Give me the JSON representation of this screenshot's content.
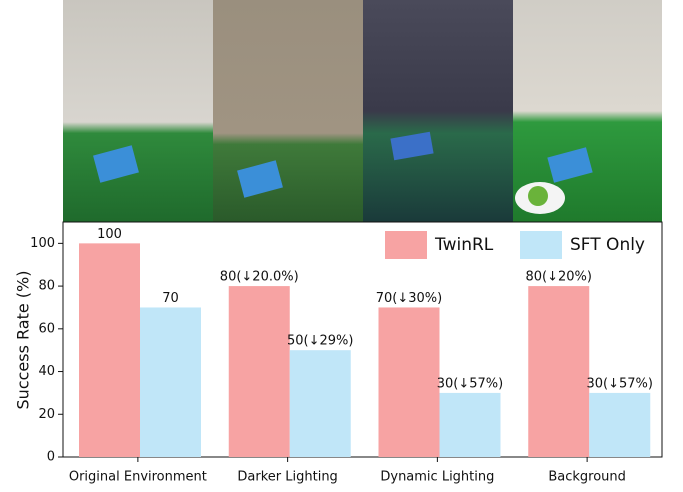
{
  "chart_data": {
    "type": "bar",
    "categories": [
      "Original Environment",
      "Darker Lighting",
      "Dynamic Lighting",
      "Background"
    ],
    "series": [
      {
        "name": "TwinRL",
        "color": "#f7a3a3",
        "values": [
          100,
          80,
          70,
          80
        ],
        "value_labels": [
          "100",
          "80(↓20.0%)",
          "70(↓30%)",
          "80(↓20%)"
        ]
      },
      {
        "name": "SFT Only",
        "color": "#c0e6f8",
        "values": [
          70,
          50,
          30,
          30
        ],
        "value_labels": [
          "70",
          "50(↓29%)",
          "30(↓57%)",
          "30(↓57%)"
        ]
      }
    ],
    "y_label": "Success Rate (%)",
    "ylim": [
      0,
      110
    ],
    "yticks": [
      0,
      20,
      40,
      60,
      80,
      100
    ],
    "legend": "top-right"
  }
}
